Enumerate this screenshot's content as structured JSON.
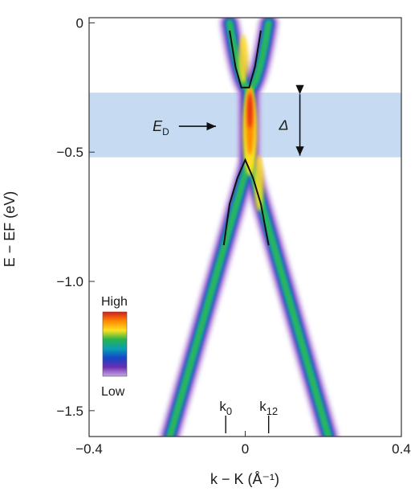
{
  "chart_data": {
    "type": "heatmap",
    "xlabel": "k − K (Å⁻¹)",
    "ylabel": "E − EF (eV)",
    "xlim": [
      -0.4,
      0.4
    ],
    "ylim": [
      -1.6,
      0.02
    ],
    "x_ticks": [
      -0.4,
      0,
      0.4
    ],
    "x_tick_labels": [
      "−0.4",
      "0",
      "0.4"
    ],
    "y_ticks": [
      0,
      -0.5,
      -1.0,
      -1.5
    ],
    "y_tick_labels": [
      "0",
      "−0.5",
      "−1.0",
      "−1.5"
    ],
    "gap_band": {
      "energy_range": [
        -0.52,
        -0.27
      ],
      "color": "#bcd3ee"
    },
    "dirac_point_label": "E",
    "dirac_point_subscript": "D",
    "gap_label": "Δ",
    "gap_arrow": {
      "x": 0.14,
      "energy_range": [
        -0.52,
        -0.27
      ]
    },
    "dirac_arrow": {
      "x_from": -0.17,
      "x_to": -0.075,
      "energy": -0.4
    },
    "upper_band_fit": {
      "x": [
        -0.04,
        -0.025,
        -0.01,
        0.0,
        0.01,
        0.025,
        0.04
      ],
      "y": [
        -0.03,
        -0.17,
        -0.25,
        -0.25,
        -0.25,
        -0.17,
        -0.03
      ]
    },
    "lower_band_fit": {
      "x": [
        -0.055,
        -0.04,
        -0.02,
        0.0,
        0.02,
        0.04,
        0.06
      ],
      "y": [
        -0.86,
        -0.7,
        -0.6,
        -0.53,
        -0.6,
        -0.7,
        -0.86
      ]
    },
    "k_markers": [
      {
        "base": "k",
        "sub": "0",
        "x": -0.05
      },
      {
        "base": "k",
        "sub": "12",
        "x": 0.06
      }
    ],
    "colorbar": {
      "high_label": "High",
      "low_label": "Low",
      "colors": [
        "#d41c1c",
        "#ff8a00",
        "#ffe020",
        "#28b34a",
        "#0aa0b4",
        "#1446c8",
        "#6a2fb0",
        "#c9a6e6"
      ]
    }
  }
}
